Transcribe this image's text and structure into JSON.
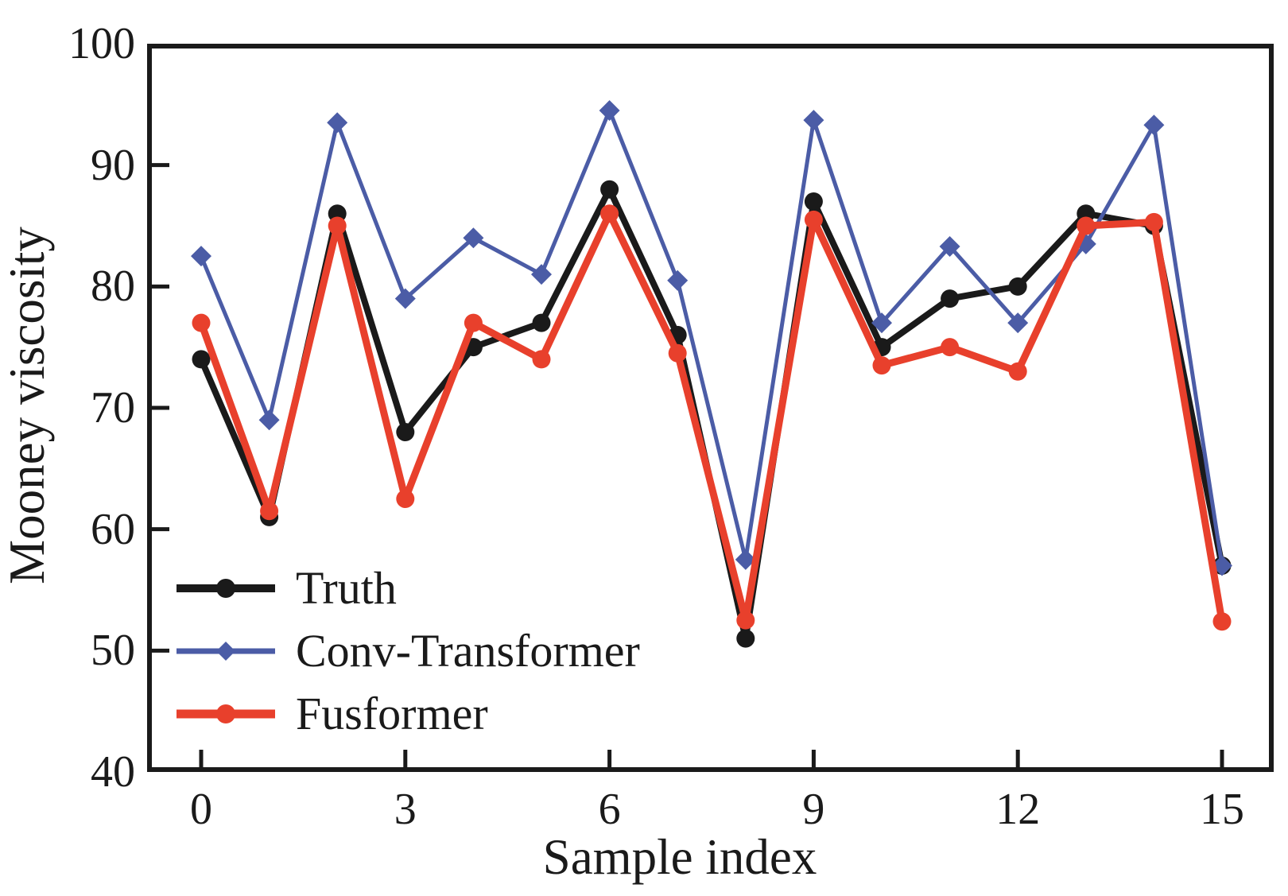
{
  "figure": {
    "background": "#ffffff",
    "axis_color": "#1a1a1a"
  },
  "chart_data": {
    "type": "line",
    "title": "",
    "xlabel": "Sample index",
    "ylabel": "Mooney viscosity",
    "x": [
      0,
      1,
      2,
      3,
      4,
      5,
      6,
      7,
      8,
      9,
      10,
      11,
      12,
      13,
      14,
      15
    ],
    "xticks": [
      0,
      3,
      6,
      9,
      12,
      15
    ],
    "yticks": [
      40,
      50,
      60,
      70,
      80,
      90,
      100
    ],
    "ylim": [
      40,
      100
    ],
    "xlim": [
      -0.8,
      15.75
    ],
    "grid": false,
    "legend_position": "lower-left",
    "series": [
      {
        "name": "Truth",
        "color": "#1a1a1a",
        "marker": "circle",
        "line_width": 8,
        "values": [
          74,
          61,
          86,
          68,
          75,
          77,
          88,
          76,
          51,
          87,
          75,
          79,
          80,
          86,
          85,
          57
        ]
      },
      {
        "name": "Conv-Transformer",
        "color": "#4b5ca6",
        "marker": "diamond",
        "line_width": 5,
        "values": [
          82.5,
          69,
          93.5,
          79,
          84,
          81,
          94.5,
          80.5,
          57.5,
          93.7,
          77,
          83.3,
          77,
          83.5,
          93.3,
          57
        ]
      },
      {
        "name": "Fusformer",
        "color": "#e8402c",
        "marker": "circle",
        "line_width": 9,
        "values": [
          77,
          61.5,
          85,
          62.5,
          77,
          74,
          86,
          74.5,
          52.5,
          85.5,
          73.5,
          75,
          73,
          85,
          85.3,
          52.4
        ]
      }
    ]
  }
}
